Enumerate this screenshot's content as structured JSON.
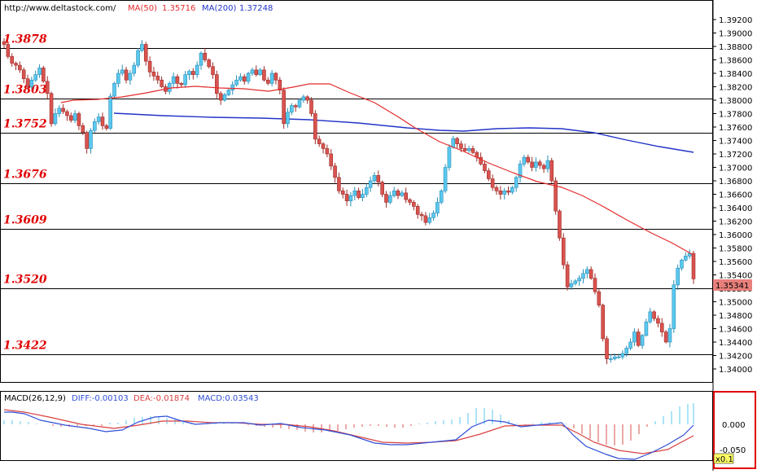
{
  "header": {
    "source": "http://www.deltastock.com/",
    "ma50_label": "MA(50)",
    "ma50_value": "1.35716",
    "ma200_label": "MA(200)",
    "ma200_value": "1.37248"
  },
  "colors": {
    "up": "#5bc8ef",
    "down": "#d9534f",
    "ma50": "#e32b2b",
    "ma200": "#2234c8",
    "level_text": "#e00000",
    "price_tag": "#e8807c",
    "diff": "#2f4fd6",
    "dea": "#d94040",
    "hist_pos": "#5bc8ef",
    "hist_neg": "#d9534f"
  },
  "main": {
    "current_price": "1.35341",
    "levels": [
      {
        "label": "1.3878",
        "value": 1.3878
      },
      {
        "label": "1.3803",
        "value": 1.3803
      },
      {
        "label": "1.3752",
        "value": 1.3752
      },
      {
        "label": "1.3676",
        "value": 1.3676
      },
      {
        "label": "1.3609",
        "value": 1.3609
      },
      {
        "label": "1.3520",
        "value": 1.352
      },
      {
        "label": "1.3422",
        "value": 1.3422
      }
    ]
  },
  "macd": {
    "label": "MACD(26,12,9)",
    "diff_text": "DIFF:-0.00103",
    "dea_text": "DEA:-0.01874",
    "macd_text": "MACD:0.03543",
    "tick_zero": "0.000",
    "tick_neg": "-0.050",
    "scale_badge": "x0.1"
  },
  "chart_data": {
    "type": "candlestick",
    "ylim": [
      1.339,
      1.3932
    ],
    "yticks": [
      "1.39200",
      "1.39000",
      "1.38800",
      "1.38600",
      "1.38400",
      "1.38200",
      "1.38000",
      "1.37800",
      "1.37600",
      "1.37400",
      "1.37200",
      "1.37000",
      "1.36800",
      "1.36600",
      "1.36400",
      "1.36200",
      "1.36000",
      "1.35800",
      "1.35600",
      "1.35400",
      "1.35200",
      "1.35000",
      "1.34800",
      "1.34600",
      "1.34400",
      "1.34200",
      "1.34000"
    ],
    "close": [
      1.3883,
      1.3865,
      1.3855,
      1.3852,
      1.3845,
      1.3832,
      1.382,
      1.383,
      1.3838,
      1.3848,
      1.3828,
      1.381,
      1.3765,
      1.378,
      1.3788,
      1.3783,
      1.3777,
      1.377,
      1.378,
      1.3762,
      1.3752,
      1.3728,
      1.3755,
      1.3768,
      1.3775,
      1.3762,
      1.3758,
      1.3806,
      1.3825,
      1.384,
      1.3845,
      1.383,
      1.384,
      1.3852,
      1.3874,
      1.3883,
      1.3858,
      1.3842,
      1.3836,
      1.383,
      1.382,
      1.3813,
      1.3825,
      1.3835,
      1.3825,
      1.3823,
      1.3838,
      1.3843,
      1.3838,
      1.3852,
      1.387,
      1.386,
      1.385,
      1.3838,
      1.381,
      1.38,
      1.3808,
      1.3815,
      1.3823,
      1.383,
      1.3835,
      1.3828,
      1.384,
      1.3845,
      1.3838,
      1.3845,
      1.383,
      1.3825,
      1.384,
      1.383,
      1.3815,
      1.3765,
      1.3782,
      1.3792,
      1.379,
      1.38,
      1.3805,
      1.38,
      1.378,
      1.3742,
      1.3735,
      1.3728,
      1.372,
      1.3702,
      1.3685,
      1.3665,
      1.366,
      1.365,
      1.3658,
      1.3665,
      1.3655,
      1.366,
      1.367,
      1.368,
      1.3688,
      1.3678,
      1.366,
      1.3648,
      1.3658,
      1.3665,
      1.3658,
      1.3662,
      1.3652,
      1.3648,
      1.3642,
      1.363,
      1.3628,
      1.3618,
      1.3625,
      1.3632,
      1.3648,
      1.3665,
      1.37,
      1.373,
      1.3743,
      1.3735,
      1.3728,
      1.3725,
      1.3728,
      1.3722,
      1.3715,
      1.3705,
      1.3695,
      1.3683,
      1.367,
      1.3665,
      1.366,
      1.3665,
      1.3663,
      1.367,
      1.3685,
      1.3705,
      1.3715,
      1.3708,
      1.37,
      1.3708,
      1.3703,
      1.3698,
      1.371,
      1.368,
      1.3635,
      1.3595,
      1.3555,
      1.3522,
      1.3527,
      1.3531,
      1.3535,
      1.3542,
      1.3548,
      1.3535,
      1.3515,
      1.3495,
      1.3445,
      1.3415,
      1.3415,
      1.3418,
      1.3418,
      1.3423,
      1.3431,
      1.344,
      1.3455,
      1.3435,
      1.345,
      1.347,
      1.3485,
      1.3475,
      1.3468,
      1.3455,
      1.344,
      1.346,
      1.3525,
      1.355,
      1.3562,
      1.3568,
      1.3572,
      1.3534
    ],
    "ma50": [
      [
        75,
        126
      ],
      [
        90,
        123
      ],
      [
        120,
        122
      ],
      [
        150,
        119
      ],
      [
        180,
        114
      ],
      [
        210,
        108
      ],
      [
        240,
        106
      ],
      [
        270,
        108
      ],
      [
        300,
        109
      ],
      [
        330,
        112
      ],
      [
        360,
        107
      ],
      [
        380,
        103
      ],
      [
        405,
        103
      ],
      [
        430,
        114
      ],
      [
        460,
        126
      ],
      [
        490,
        144
      ],
      [
        510,
        157
      ],
      [
        540,
        174
      ],
      [
        570,
        186
      ],
      [
        600,
        200
      ],
      [
        630,
        212
      ],
      [
        660,
        223
      ],
      [
        690,
        230
      ],
      [
        715,
        240
      ],
      [
        740,
        253
      ],
      [
        770,
        270
      ],
      [
        800,
        286
      ],
      [
        825,
        298
      ],
      [
        850,
        312
      ]
    ],
    "ma200": [
      [
        140,
        139
      ],
      [
        200,
        142
      ],
      [
        260,
        144
      ],
      [
        320,
        145
      ],
      [
        380,
        147
      ],
      [
        440,
        151
      ],
      [
        500,
        157
      ],
      [
        540,
        160
      ],
      [
        570,
        161
      ],
      [
        610,
        158
      ],
      [
        650,
        157
      ],
      [
        690,
        158
      ],
      [
        730,
        163
      ],
      [
        770,
        172
      ],
      [
        810,
        180
      ],
      [
        852,
        187
      ]
    ],
    "macd_diff": [
      [
        5,
        506
      ],
      [
        15,
        506
      ],
      [
        30,
        508
      ],
      [
        50,
        516
      ],
      [
        80,
        522
      ],
      [
        110,
        526
      ],
      [
        130,
        530
      ],
      [
        150,
        528
      ],
      [
        170,
        518
      ],
      [
        190,
        512
      ],
      [
        205,
        511
      ],
      [
        220,
        516
      ],
      [
        240,
        521
      ],
      [
        270,
        519
      ],
      [
        300,
        519
      ],
      [
        320,
        522
      ],
      [
        345,
        520
      ],
      [
        370,
        525
      ],
      [
        400,
        528
      ],
      [
        430,
        534
      ],
      [
        460,
        544
      ],
      [
        480,
        546
      ],
      [
        500,
        546
      ],
      [
        520,
        544
      ],
      [
        560,
        540
      ],
      [
        580,
        524
      ],
      [
        600,
        516
      ],
      [
        620,
        518
      ],
      [
        640,
        524
      ],
      [
        660,
        522
      ],
      [
        690,
        519
      ],
      [
        705,
        535
      ],
      [
        720,
        548
      ],
      [
        745,
        558
      ],
      [
        760,
        563
      ],
      [
        780,
        564
      ],
      [
        800,
        556
      ],
      [
        820,
        546
      ],
      [
        840,
        534
      ],
      [
        852,
        522
      ]
    ],
    "macd_dea": [
      [
        5,
        503
      ],
      [
        30,
        506
      ],
      [
        60,
        512
      ],
      [
        100,
        521
      ],
      [
        140,
        526
      ],
      [
        170,
        522
      ],
      [
        200,
        517
      ],
      [
        230,
        517
      ],
      [
        260,
        519
      ],
      [
        290,
        519
      ],
      [
        320,
        521
      ],
      [
        350,
        521
      ],
      [
        380,
        524
      ],
      [
        410,
        529
      ],
      [
        440,
        536
      ],
      [
        470,
        543
      ],
      [
        500,
        544
      ],
      [
        530,
        543
      ],
      [
        560,
        541
      ],
      [
        590,
        533
      ],
      [
        620,
        523
      ],
      [
        650,
        522
      ],
      [
        690,
        522
      ],
      [
        710,
        532
      ],
      [
        730,
        543
      ],
      [
        760,
        553
      ],
      [
        790,
        557
      ],
      [
        820,
        552
      ],
      [
        852,
        535
      ]
    ],
    "macd_hist": [
      [
        5,
        5
      ],
      [
        15,
        5
      ],
      [
        25,
        4
      ],
      [
        35,
        3
      ],
      [
        45,
        1
      ],
      [
        55,
        0
      ],
      [
        65,
        -2
      ],
      [
        75,
        -3
      ],
      [
        85,
        -3
      ],
      [
        95,
        -2
      ],
      [
        105,
        -2
      ],
      [
        115,
        -2
      ],
      [
        125,
        -2
      ],
      [
        135,
        2
      ],
      [
        145,
        2
      ],
      [
        155,
        5
      ],
      [
        165,
        8
      ],
      [
        175,
        9
      ],
      [
        185,
        10
      ],
      [
        195,
        9
      ],
      [
        205,
        8
      ],
      [
        215,
        6
      ],
      [
        225,
        4
      ],
      [
        235,
        2
      ],
      [
        245,
        1
      ],
      [
        255,
        1
      ],
      [
        265,
        1
      ],
      [
        275,
        2
      ],
      [
        285,
        1
      ],
      [
        295,
        0
      ],
      [
        305,
        -1
      ],
      [
        315,
        -2
      ],
      [
        325,
        -3
      ],
      [
        335,
        -4
      ],
      [
        345,
        -5
      ],
      [
        355,
        -6
      ],
      [
        365,
        -7
      ],
      [
        375,
        -9
      ],
      [
        385,
        -10
      ],
      [
        395,
        -10
      ],
      [
        405,
        -9
      ],
      [
        415,
        -8
      ],
      [
        425,
        -6
      ],
      [
        435,
        -4
      ],
      [
        445,
        -3
      ],
      [
        455,
        -2
      ],
      [
        465,
        -2
      ],
      [
        475,
        -3
      ],
      [
        485,
        -4
      ],
      [
        495,
        -4
      ],
      [
        505,
        -2
      ],
      [
        515,
        1
      ],
      [
        525,
        2
      ],
      [
        535,
        4
      ],
      [
        545,
        5
      ],
      [
        555,
        6
      ],
      [
        565,
        9
      ],
      [
        575,
        14
      ],
      [
        585,
        20
      ],
      [
        595,
        20
      ],
      [
        605,
        18
      ],
      [
        615,
        12
      ],
      [
        625,
        5
      ],
      [
        635,
        1
      ],
      [
        645,
        -1
      ],
      [
        655,
        1
      ],
      [
        665,
        3
      ],
      [
        675,
        3
      ],
      [
        685,
        2
      ],
      [
        695,
        1
      ],
      [
        705,
        -5
      ],
      [
        715,
        -12
      ],
      [
        725,
        -18
      ],
      [
        735,
        -22
      ],
      [
        745,
        -25
      ],
      [
        755,
        -26
      ],
      [
        765,
        -25
      ],
      [
        775,
        -20
      ],
      [
        785,
        -12
      ],
      [
        795,
        -3
      ],
      [
        805,
        4
      ],
      [
        815,
        10
      ],
      [
        825,
        16
      ],
      [
        835,
        22
      ],
      [
        845,
        25
      ],
      [
        852,
        26
      ]
    ]
  }
}
